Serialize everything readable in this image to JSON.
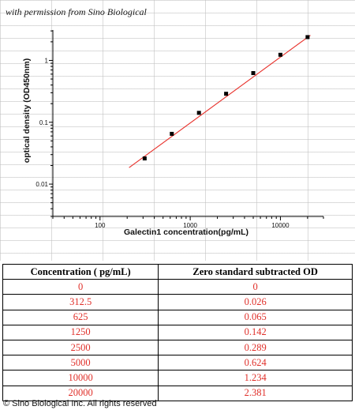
{
  "watermark_note": "with permission from Sino Biological",
  "chart_data": {
    "type": "scatter",
    "xlabel": "Galectin1  concentration(pg/mL)",
    "ylabel": "optical density (OD450nm)",
    "x_scale": "log",
    "y_scale": "log",
    "xlim": [
      30,
      30000
    ],
    "ylim": [
      0.003,
      3.1
    ],
    "x_ticks": [
      100,
      1000,
      10000
    ],
    "x_tick_labels": [
      "100",
      "1000",
      "10000"
    ],
    "y_ticks": [
      0.01,
      0.1,
      1
    ],
    "y_tick_labels": [
      "0.01",
      "0.1",
      "1"
    ],
    "series": [
      {
        "x": [
          312.5,
          625,
          1250,
          2500,
          5000,
          10000,
          20000
        ],
        "y": [
          0.026,
          0.065,
          0.142,
          0.289,
          0.624,
          1.234,
          2.381
        ],
        "marker": "square",
        "color": "#000000"
      }
    ],
    "fit_line": {
      "color": "#e8302a",
      "x": [
        210,
        21500
      ],
      "y": [
        0.0185,
        2.55
      ]
    },
    "grid": false
  },
  "table": {
    "headers": [
      "Concentration ( pg/mL)",
      "Zero standard subtracted OD"
    ],
    "rows": [
      [
        "0",
        "0"
      ],
      [
        "312.5",
        "0.026"
      ],
      [
        "625",
        "0.065"
      ],
      [
        "1250",
        "0.142"
      ],
      [
        "2500",
        "0.289"
      ],
      [
        "5000",
        "0.624"
      ],
      [
        "10000",
        "1.234"
      ],
      [
        "20000",
        "2.381"
      ]
    ]
  },
  "colors": {
    "table_values": "#e0302a",
    "fit_line": "#e8302a",
    "markers": "#000000"
  },
  "copyright": "© Sino Biological Inc. All rights reserved"
}
